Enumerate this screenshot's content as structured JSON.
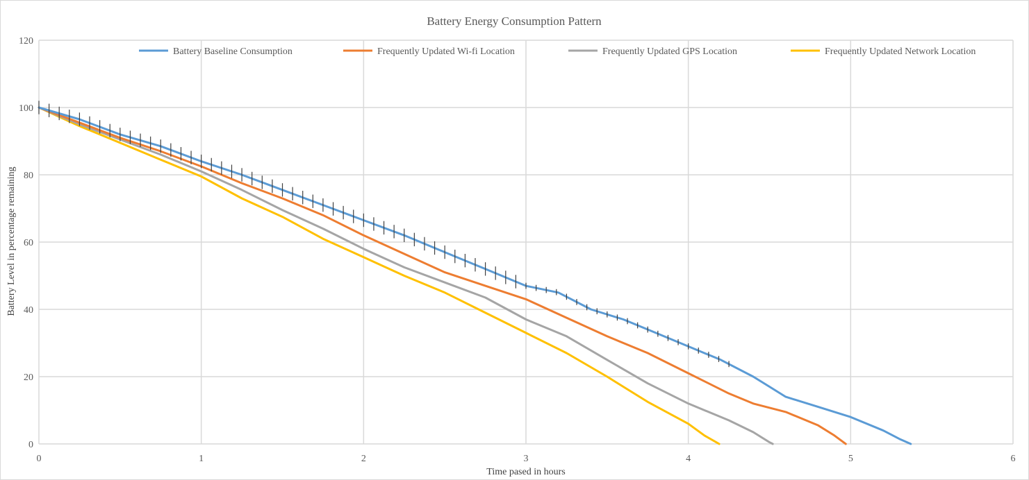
{
  "chart_data": {
    "type": "line",
    "title": "Battery Energy Consumption Pattern",
    "xlabel": "Time pased in hours",
    "ylabel": "Battery Level in percentage remaining",
    "xlim": [
      0,
      6
    ],
    "ylim": [
      0,
      120
    ],
    "xticks": [
      "0",
      "1",
      "2",
      "3",
      "4",
      "5",
      "6"
    ],
    "yticks": [
      "0",
      "20",
      "40",
      "60",
      "80",
      "100",
      "120"
    ],
    "grid": true,
    "legend_position": "top",
    "series": [
      {
        "name": "Battery Baseline Consumption",
        "color": "#5b9bd5",
        "x": [
          0,
          0.25,
          0.5,
          0.75,
          1.0,
          1.25,
          1.5,
          1.75,
          2.0,
          2.25,
          2.5,
          2.75,
          3.0,
          3.2,
          3.4,
          3.6,
          3.8,
          4.0,
          4.2,
          4.4,
          4.5,
          4.6,
          4.8,
          5.0,
          5.2,
          5.3,
          5.37
        ],
        "y": [
          100,
          96.5,
          92,
          88.5,
          84,
          80,
          75.5,
          71,
          66.5,
          62,
          57,
          52,
          47,
          45,
          40,
          37,
          33,
          29,
          25,
          20,
          17,
          14,
          11,
          8,
          4,
          1.5,
          0
        ]
      },
      {
        "name": "Frequently Updated Wi-fi Location",
        "color": "#ed7d31",
        "x": [
          0,
          0.25,
          0.5,
          0.75,
          1.0,
          1.25,
          1.5,
          1.75,
          2.0,
          2.25,
          2.5,
          2.75,
          3.0,
          3.25,
          3.5,
          3.75,
          4.0,
          4.25,
          4.4,
          4.6,
          4.8,
          4.9,
          4.97
        ],
        "y": [
          100,
          95.5,
          91,
          87,
          82.5,
          77.5,
          73,
          68,
          62,
          56.5,
          51,
          47,
          43,
          37.5,
          32,
          27,
          21,
          15,
          12,
          9.5,
          5.5,
          2.5,
          0
        ]
      },
      {
        "name": "Frequently Updated GPS Location",
        "color": "#a5a5a5",
        "x": [
          0,
          0.25,
          0.5,
          0.75,
          1.0,
          1.25,
          1.5,
          1.75,
          2.0,
          2.25,
          2.5,
          2.75,
          3.0,
          3.25,
          3.5,
          3.75,
          4.0,
          4.25,
          4.4,
          4.5,
          4.52
        ],
        "y": [
          100,
          95,
          90.5,
          86,
          81,
          75.5,
          69.5,
          64,
          58,
          52.5,
          48,
          43.5,
          37,
          32,
          25,
          18,
          12,
          7,
          3.5,
          0.5,
          0
        ]
      },
      {
        "name": "Frequently Updated Network Location",
        "color": "#ffc000",
        "x": [
          0,
          0.25,
          0.5,
          0.75,
          1.0,
          1.25,
          1.5,
          1.75,
          2.0,
          2.25,
          2.5,
          2.75,
          3.0,
          3.25,
          3.5,
          3.75,
          4.0,
          4.1,
          4.19
        ],
        "y": [
          100,
          94.5,
          89.5,
          84.5,
          79.5,
          73,
          67.5,
          61,
          55.5,
          50,
          45,
          39,
          33,
          27,
          20,
          12.5,
          6,
          2.5,
          0
        ]
      }
    ],
    "error_bars": {
      "on_series": "Battery Baseline Consumption",
      "half_height": 2
    }
  }
}
